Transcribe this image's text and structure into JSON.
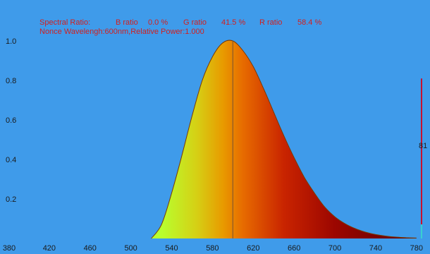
{
  "header": {
    "ratio_label": "Spectral Ratio:",
    "b_label": "B ratio",
    "b_value": "0.0 %",
    "g_label": "G ratio",
    "g_value": "41.5 %",
    "r_label": "R ratio",
    "r_value": "58.4 %",
    "peak_line": "Nonce Wavelengh:600nm,Relative Power:1.000"
  },
  "colors": {
    "background": "#3f9bea",
    "text": "#d21f1f",
    "axis_text": "#1a1a1a"
  },
  "side_indicator": {
    "value": "81",
    "fraction": 0.81
  },
  "chart_data": {
    "type": "area",
    "title": "",
    "xlabel": "",
    "ylabel": "",
    "xlim": [
      380,
      785
    ],
    "ylim": [
      0,
      1.0
    ],
    "x_ticks": [
      380,
      420,
      460,
      500,
      540,
      580,
      620,
      660,
      700,
      740,
      780
    ],
    "y_ticks": [
      0.2,
      0.4,
      0.6,
      0.8,
      1.0
    ],
    "x_tick_labels": [
      "380",
      "420",
      "460",
      "500",
      "540",
      "580",
      "620",
      "660",
      "700",
      "740",
      "780"
    ],
    "y_tick_labels": [
      "0.2",
      "0.4",
      "0.6",
      "0.8",
      "1.0"
    ],
    "peak_wavelength": 600,
    "series": [
      {
        "x": [
          520,
          530,
          540,
          550,
          560,
          570,
          580,
          590,
          600,
          610,
          620,
          630,
          640,
          650,
          660,
          670,
          680,
          690,
          700,
          710,
          720,
          730,
          740,
          750,
          760,
          770,
          780
        ],
        "values": [
          0.0,
          0.07,
          0.23,
          0.42,
          0.62,
          0.8,
          0.92,
          0.99,
          1.0,
          0.95,
          0.87,
          0.76,
          0.64,
          0.52,
          0.41,
          0.31,
          0.23,
          0.16,
          0.11,
          0.075,
          0.05,
          0.032,
          0.02,
          0.012,
          0.007,
          0.004,
          0.002
        ]
      }
    ]
  }
}
